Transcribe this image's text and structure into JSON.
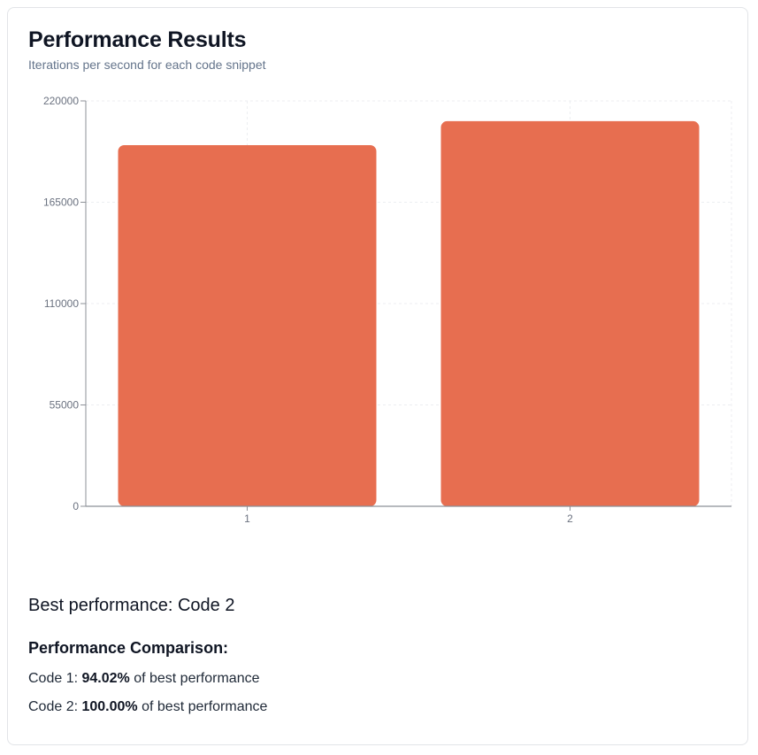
{
  "header": {
    "title": "Performance Results",
    "subtitle": "Iterations per second for each code snippet"
  },
  "colors": {
    "bar": "#e76e50",
    "axis": "#8c9097",
    "grid": "#eceef1",
    "tick_text": "#6b7280"
  },
  "chart_data": {
    "type": "bar",
    "categories": [
      "1",
      "2"
    ],
    "values": [
      196000,
      209000
    ],
    "ylim": [
      0,
      220000
    ],
    "yticks": [
      "0",
      "55000",
      "110000",
      "165000",
      "220000"
    ],
    "grid": true,
    "title": "",
    "xlabel": "",
    "ylabel": ""
  },
  "summary": {
    "best_text": "Best performance: Code 2",
    "comparison_heading": "Performance Comparison:",
    "rows": [
      {
        "prefix": "Code 1: ",
        "percent": "94.02%",
        "suffix": " of best performance"
      },
      {
        "prefix": "Code 2: ",
        "percent": "100.00%",
        "suffix": " of best performance"
      }
    ]
  }
}
